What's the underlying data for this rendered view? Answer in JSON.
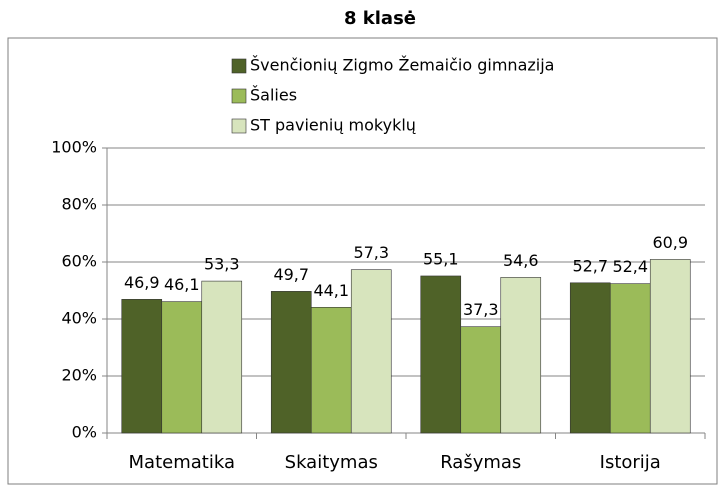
{
  "chart_data": {
    "type": "bar",
    "title": "8 klasė",
    "categories": [
      "Matematika",
      "Skaitymas",
      "Rašymas",
      "Istorija"
    ],
    "series": [
      {
        "name": "Švenčionių Zigmo Žemaičio gimnazija",
        "color": "#4f6228",
        "values": [
          46.9,
          49.7,
          55.1,
          52.7
        ],
        "value_labels": [
          "46,9",
          "49,7",
          "55,1",
          "52,7"
        ]
      },
      {
        "name": "Šalies",
        "color": "#9bbb59",
        "values": [
          46.1,
          44.1,
          37.3,
          52.4
        ],
        "value_labels": [
          "46,1",
          "44,1",
          "37,3",
          "52,4"
        ]
      },
      {
        "name": "ST pavienių mokyklų",
        "color": "#d7e4bd",
        "values": [
          53.3,
          57.3,
          54.6,
          60.9
        ],
        "value_labels": [
          "53,3",
          "57,3",
          "54,6",
          "60,9"
        ]
      }
    ],
    "ylim": [
      0,
      100
    ],
    "yticks": [
      {
        "value": 0,
        "label": "0%"
      },
      {
        "value": 20,
        "label": "20%"
      },
      {
        "value": 40,
        "label": "40%"
      },
      {
        "value": 60,
        "label": "60%"
      },
      {
        "value": 80,
        "label": "80%"
      },
      {
        "value": 100,
        "label": "100%"
      }
    ],
    "grid": true,
    "legend": "top"
  }
}
